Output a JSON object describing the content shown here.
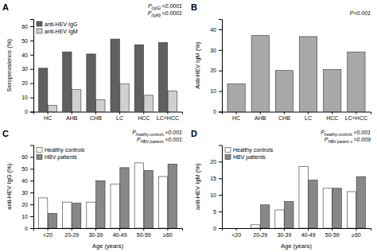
{
  "chart_data": [
    {
      "type": "bar",
      "title": "A",
      "categories": [
        "HC",
        "AHB",
        "CHB",
        "LC",
        "HCC",
        "LC+HCC"
      ],
      "series": [
        {
          "name": "anti-HEV IgG",
          "color": "#606060",
          "values": [
            30.5,
            42,
            40.5,
            51,
            47,
            48.5
          ]
        },
        {
          "name": "anti-HEV IgM",
          "color": "#d0d0d0",
          "values": [
            4.5,
            15.5,
            8.5,
            19.5,
            11.5,
            14.5
          ]
        }
      ],
      "ylabel": "Seroprevalence (%)",
      "ylim": [
        0,
        65
      ],
      "yticks": [
        0,
        10,
        20,
        30,
        40,
        50,
        60
      ],
      "legend": "upper left",
      "annotations": [
        [
          "P",
          "(IgG)",
          "<0.0001"
        ],
        [
          "P",
          "(IgM)",
          "<0.0001"
        ]
      ]
    },
    {
      "type": "bar",
      "title": "B",
      "categories": [
        "HC",
        "AHB",
        "CHB",
        "LC",
        "HCC",
        "LC+HCC"
      ],
      "values": [
        13.5,
        37,
        20,
        36.5,
        20.5,
        29
      ],
      "color": "#a8a8a8",
      "ylabel": "Anti-HEV IgM (%)",
      "ylim": [
        0,
        45
      ],
      "yticks": [
        0,
        10,
        20,
        30,
        40
      ],
      "annotations": [
        [
          "P<0.001"
        ]
      ]
    },
    {
      "type": "bar",
      "title": "C",
      "categories": [
        "<20",
        "20-29",
        "30-39",
        "40-49",
        "50-59",
        "≥60"
      ],
      "series": [
        {
          "name": "Healthy controls",
          "color": "#ffffff",
          "values": [
            25.5,
            22,
            22,
            37,
            55,
            43.5
          ]
        },
        {
          "name": "HBV patients",
          "color": "#888888",
          "values": [
            12.5,
            21,
            40,
            51,
            48.5,
            54
          ]
        }
      ],
      "ylabel": "anti-HEV IgG (%)",
      "xlabel": "Age (years)",
      "ylim": [
        0,
        70
      ],
      "yticks": [
        0,
        10,
        20,
        30,
        40,
        50,
        60
      ],
      "legend": "upper left",
      "annotations": [
        [
          "P",
          "healthy controls",
          "<0.001"
        ],
        [
          "P",
          "HBV patients",
          "<0.001"
        ]
      ]
    },
    {
      "type": "bar",
      "title": "D",
      "categories": [
        "<20",
        "20-29",
        "30-39",
        "40-49",
        "50-59",
        "≥60"
      ],
      "series": [
        {
          "name": "Healthy controls",
          "color": "#ffffff",
          "values": [
            0,
            1,
            5.5,
            18.5,
            12,
            11
          ]
        },
        {
          "name": "HBV patients",
          "color": "#888888",
          "values": [
            0,
            7,
            8,
            14.5,
            12,
            15.5
          ]
        }
      ],
      "ylabel": "anti-HEV IgM (%)",
      "xlabel": "Age (years)",
      "ylim": [
        0,
        25
      ],
      "yticks": [
        0,
        5,
        10,
        15,
        20
      ],
      "legend": "upper left",
      "annotations": [
        [
          "P",
          "healthy controls",
          "<0.001"
        ],
        [
          "P",
          "HBV patient s",
          "=0.009"
        ]
      ]
    }
  ]
}
